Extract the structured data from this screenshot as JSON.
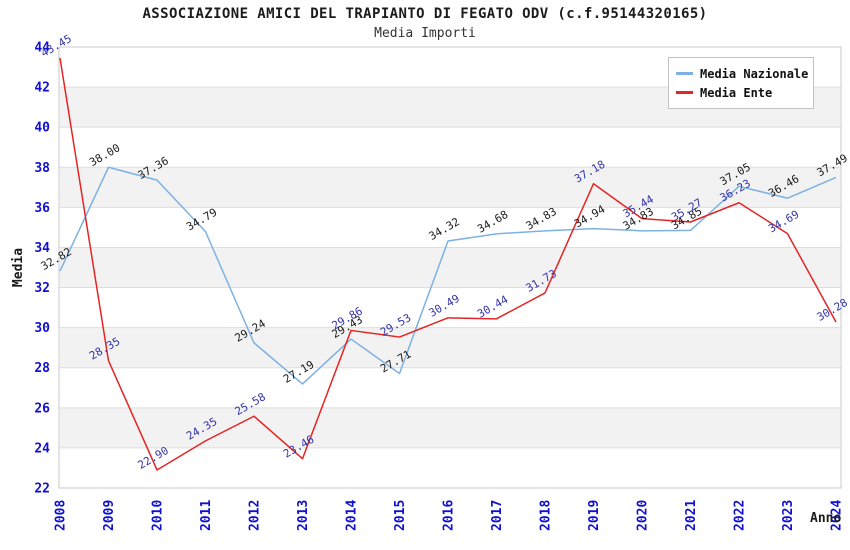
{
  "header": {
    "title": "ASSOCIAZIONE AMICI DEL TRAPIANTO DI FEGATO ODV (c.f.95144320165)",
    "subtitle": "Media Importi"
  },
  "axes": {
    "y_label": "Media",
    "x_label": "Anno"
  },
  "style": {
    "band_color": "#f2f2f2",
    "grid_color": "#dedede",
    "border_color": "#c9c9c9",
    "tick_label_color": "#1010d0"
  },
  "chart_data": {
    "type": "line",
    "title": "ASSOCIAZIONE AMICI DEL TRAPIANTO DI FEGATO ODV (c.f.95144320165)",
    "subtitle": "Media Importi",
    "xlabel": "Anno",
    "ylabel": "Media",
    "categories": [
      "2008",
      "2009",
      "2010",
      "2011",
      "2012",
      "2013",
      "2014",
      "2015",
      "2016",
      "2017",
      "2018",
      "2019",
      "2020",
      "2021",
      "2022",
      "2023",
      "2024"
    ],
    "series": [
      {
        "name": "Media Nazionale",
        "color": "#7db1e3",
        "label_color": "#1c1c1c",
        "values": [
          32.82,
          38.0,
          37.36,
          34.79,
          29.24,
          27.19,
          29.43,
          27.71,
          34.32,
          34.68,
          34.83,
          34.94,
          34.83,
          34.85,
          37.05,
          36.46,
          37.49
        ]
      },
      {
        "name": "Media Ente",
        "color": "#e42525",
        "label_color": "#3434aa",
        "values": [
          43.45,
          28.35,
          22.9,
          24.35,
          25.58,
          23.46,
          29.86,
          29.53,
          30.49,
          30.44,
          31.73,
          37.18,
          35.44,
          35.27,
          36.23,
          34.69,
          30.28
        ]
      }
    ],
    "ylim": [
      22,
      44
    ],
    "yticks": [
      22,
      24,
      26,
      28,
      30,
      32,
      34,
      36,
      38,
      40,
      42,
      44
    ],
    "grid": "horizontal",
    "zebra_bands": true,
    "legend_position": "top-right",
    "point_labels": "all, rotated -30deg, 2 decimals"
  }
}
